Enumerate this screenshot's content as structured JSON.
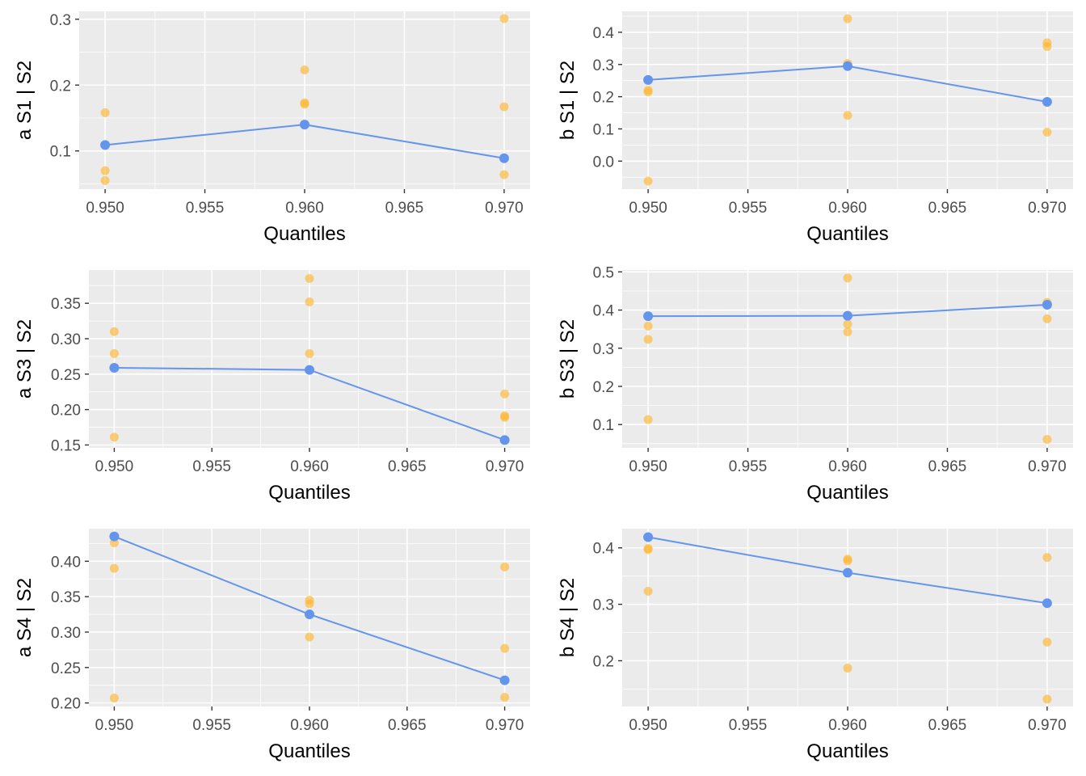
{
  "chart_data": [
    {
      "type": "scatter",
      "xlabel": "Quantiles",
      "ylabel": "a  S1 | S2",
      "xlim": [
        0.9487,
        0.9713
      ],
      "ylim": [
        0.042,
        0.312
      ],
      "x_ticks": [
        "0.950",
        "0.955",
        "0.960",
        "0.965",
        "0.970"
      ],
      "y_ticks": [
        "0.1",
        "0.2",
        "0.3"
      ],
      "grid": true,
      "series": [
        {
          "kind": "points",
          "color": "#ffb732",
          "x": [
            0.95,
            0.95,
            0.95,
            0.96,
            0.96,
            0.96,
            0.97,
            0.97,
            0.97
          ],
          "y": [
            0.158,
            0.07,
            0.055,
            0.223,
            0.173,
            0.171,
            0.301,
            0.167,
            0.064
          ]
        },
        {
          "kind": "line+points",
          "color": "#6495ed",
          "x": [
            0.95,
            0.96,
            0.97
          ],
          "y": [
            0.109,
            0.14,
            0.089
          ]
        }
      ]
    },
    {
      "type": "scatter",
      "xlabel": "Quantiles",
      "ylabel": "b  S1 | S2",
      "xlim": [
        0.9487,
        0.9713
      ],
      "ylim": [
        -0.087,
        0.465
      ],
      "x_ticks": [
        "0.950",
        "0.955",
        "0.960",
        "0.965",
        "0.970"
      ],
      "y_ticks": [
        "0.0",
        "0.1",
        "0.2",
        "0.3",
        "0.4"
      ],
      "grid": true,
      "series": [
        {
          "kind": "points",
          "color": "#ffb732",
          "x": [
            0.95,
            0.95,
            0.95,
            0.96,
            0.96,
            0.96,
            0.97,
            0.97,
            0.97
          ],
          "y": [
            0.215,
            0.22,
            -0.062,
            0.442,
            0.303,
            0.142,
            0.367,
            0.356,
            0.09
          ]
        },
        {
          "kind": "line+points",
          "color": "#6495ed",
          "x": [
            0.95,
            0.96,
            0.97
          ],
          "y": [
            0.252,
            0.295,
            0.184
          ]
        }
      ]
    },
    {
      "type": "scatter",
      "xlabel": "Quantiles",
      "ylabel": "a  S3 | S2",
      "xlim": [
        0.9487,
        0.9713
      ],
      "ylim": [
        0.146,
        0.397
      ],
      "x_ticks": [
        "0.950",
        "0.955",
        "0.960",
        "0.965",
        "0.970"
      ],
      "y_ticks": [
        "0.15",
        "0.20",
        "0.25",
        "0.30",
        "0.35"
      ],
      "grid": true,
      "series": [
        {
          "kind": "points",
          "color": "#ffb732",
          "x": [
            0.95,
            0.95,
            0.95,
            0.96,
            0.96,
            0.96,
            0.97,
            0.97,
            0.97
          ],
          "y": [
            0.31,
            0.279,
            0.161,
            0.385,
            0.352,
            0.279,
            0.222,
            0.191,
            0.189
          ]
        },
        {
          "kind": "line+points",
          "color": "#6495ed",
          "x": [
            0.95,
            0.96,
            0.97
          ],
          "y": [
            0.259,
            0.256,
            0.157
          ]
        }
      ]
    },
    {
      "type": "scatter",
      "xlabel": "Quantiles",
      "ylabel": "b  S3 | S2",
      "xlim": [
        0.9487,
        0.9713
      ],
      "ylim": [
        0.039,
        0.505
      ],
      "x_ticks": [
        "0.950",
        "0.955",
        "0.960",
        "0.965",
        "0.970"
      ],
      "y_ticks": [
        "0.1",
        "0.2",
        "0.3",
        "0.4",
        "0.5"
      ],
      "grid": true,
      "series": [
        {
          "kind": "points",
          "color": "#ffb732",
          "x": [
            0.95,
            0.95,
            0.95,
            0.96,
            0.96,
            0.96,
            0.97,
            0.97,
            0.97
          ],
          "y": [
            0.358,
            0.323,
            0.113,
            0.484,
            0.363,
            0.343,
            0.42,
            0.377,
            0.061
          ]
        },
        {
          "kind": "line+points",
          "color": "#6495ed",
          "x": [
            0.95,
            0.96,
            0.97
          ],
          "y": [
            0.384,
            0.385,
            0.414
          ]
        }
      ]
    },
    {
      "type": "scatter",
      "xlabel": "Quantiles",
      "ylabel": "a  S4 | S2",
      "xlim": [
        0.9487,
        0.9713
      ],
      "ylim": [
        0.195,
        0.446
      ],
      "x_ticks": [
        "0.950",
        "0.955",
        "0.960",
        "0.965",
        "0.970"
      ],
      "y_ticks": [
        "0.20",
        "0.25",
        "0.30",
        "0.35",
        "0.40"
      ],
      "grid": true,
      "series": [
        {
          "kind": "points",
          "color": "#ffb732",
          "x": [
            0.95,
            0.95,
            0.95,
            0.96,
            0.96,
            0.96,
            0.97,
            0.97,
            0.97
          ],
          "y": [
            0.426,
            0.39,
            0.207,
            0.345,
            0.34,
            0.293,
            0.392,
            0.277,
            0.208
          ]
        },
        {
          "kind": "line+points",
          "color": "#6495ed",
          "x": [
            0.95,
            0.96,
            0.97
          ],
          "y": [
            0.435,
            0.325,
            0.232
          ]
        }
      ]
    },
    {
      "type": "scatter",
      "xlabel": "Quantiles",
      "ylabel": "b  S4 | S2",
      "xlim": [
        0.9487,
        0.9713
      ],
      "ylim": [
        0.119,
        0.434
      ],
      "x_ticks": [
        "0.950",
        "0.955",
        "0.960",
        "0.965",
        "0.970"
      ],
      "y_ticks": [
        "0.2",
        "0.3",
        "0.4"
      ],
      "grid": true,
      "series": [
        {
          "kind": "points",
          "color": "#ffb732",
          "x": [
            0.95,
            0.95,
            0.95,
            0.96,
            0.96,
            0.96,
            0.97,
            0.97,
            0.97
          ],
          "y": [
            0.399,
            0.397,
            0.323,
            0.38,
            0.377,
            0.187,
            0.383,
            0.233,
            0.132
          ]
        },
        {
          "kind": "line+points",
          "color": "#6495ed",
          "x": [
            0.95,
            0.96,
            0.97
          ],
          "y": [
            0.419,
            0.356,
            0.302
          ]
        }
      ]
    }
  ]
}
